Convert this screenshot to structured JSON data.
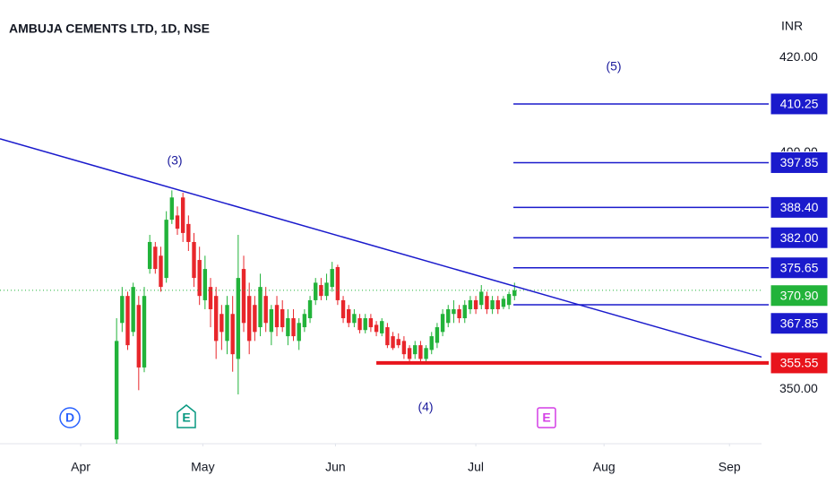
{
  "chart_data": {
    "type": "candlestick",
    "title": "AMBUJA CEMENTS LTD, 1D, NSE",
    "currency": "INR",
    "up_color": "#22b33a",
    "down_color": "#e8262b",
    "open": [
      339.4,
      364.0,
      369.7,
      362.1,
      367.8,
      354.6,
      375.4,
      380.1,
      378.2,
      373.5,
      385.8,
      386.7,
      390.5,
      384.9,
      381.1,
      377.3,
      368.8,
      371.6,
      369.7,
      365.9,
      360.2,
      365.9,
      356.4,
      375.4,
      369.7,
      367.8,
      363.1,
      369.7,
      362.1,
      367.8,
      366.9,
      361.2,
      365.0,
      360.2,
      363.1,
      365.0,
      368.8,
      372.0,
      369.7,
      371.6,
      375.8,
      368.8,
      366.9,
      364.0,
      365.0,
      362.5,
      365.0,
      363.6,
      361.8,
      363.1,
      361.2,
      360.6,
      360.2,
      358.7,
      357.4,
      359.3,
      356.4,
      358.3,
      359.8,
      362.1,
      364.0,
      365.9,
      366.9,
      365.0,
      366.9,
      368.8,
      367.8,
      369.7,
      366.9,
      368.8,
      367.4,
      367.8,
      369.7
    ],
    "high": [
      365.0,
      371.6,
      370.6,
      372.5,
      369.7,
      371.6,
      382.6,
      381.1,
      380.1,
      387.6,
      392.0,
      388.6,
      391.5,
      386.7,
      383.0,
      380.1,
      378.2,
      373.5,
      371.6,
      367.8,
      369.7,
      369.7,
      382.6,
      378.2,
      372.5,
      369.7,
      374.4,
      371.6,
      367.8,
      369.7,
      368.8,
      366.9,
      366.9,
      365.0,
      366.9,
      369.7,
      373.5,
      373.5,
      374.4,
      376.9,
      376.3,
      369.7,
      367.8,
      366.9,
      365.9,
      365.9,
      365.9,
      364.4,
      365.0,
      364.0,
      362.1,
      361.8,
      361.2,
      359.3,
      360.2,
      360.2,
      359.3,
      362.1,
      364.0,
      366.9,
      367.8,
      368.8,
      367.8,
      368.8,
      369.7,
      369.7,
      372.0,
      370.6,
      369.7,
      369.7,
      369.7,
      370.6,
      372.5
    ],
    "low": [
      338.5,
      362.1,
      358.3,
      361.2,
      349.8,
      353.6,
      374.4,
      374.4,
      370.6,
      372.5,
      384.9,
      382.6,
      381.1,
      379.2,
      371.6,
      367.8,
      366.9,
      363.1,
      356.4,
      358.3,
      357.4,
      353.7,
      348.9,
      362.1,
      357.4,
      360.2,
      361.2,
      362.1,
      359.3,
      361.2,
      362.1,
      359.3,
      360.2,
      358.3,
      362.1,
      364.0,
      367.8,
      368.8,
      368.8,
      370.6,
      367.8,
      364.0,
      363.1,
      363.1,
      361.8,
      361.8,
      362.1,
      361.2,
      361.2,
      358.7,
      358.3,
      358.7,
      356.4,
      355.5,
      356.4,
      355.5,
      355.5,
      357.4,
      358.7,
      361.2,
      363.1,
      364.0,
      364.0,
      364.0,
      365.9,
      365.9,
      366.9,
      365.9,
      365.9,
      365.9,
      366.9,
      366.9,
      368.8
    ],
    "close": [
      360.2,
      369.7,
      359.3,
      371.6,
      354.6,
      369.7,
      381.1,
      375.4,
      371.6,
      385.8,
      390.5,
      383.9,
      383.0,
      381.1,
      373.5,
      369.7,
      375.4,
      366.9,
      360.2,
      362.1,
      367.8,
      357.4,
      373.5,
      364.0,
      360.2,
      362.1,
      371.6,
      364.0,
      366.9,
      363.1,
      363.1,
      365.0,
      361.2,
      364.0,
      365.9,
      368.8,
      372.5,
      369.7,
      372.5,
      375.4,
      368.8,
      365.0,
      364.0,
      365.9,
      362.5,
      365.0,
      363.1,
      362.1,
      364.4,
      359.3,
      358.7,
      359.3,
      357.4,
      356.4,
      359.3,
      356.4,
      358.7,
      361.2,
      363.1,
      365.9,
      366.9,
      366.9,
      365.0,
      367.8,
      368.8,
      366.9,
      370.6,
      366.9,
      368.8,
      366.9,
      369.1,
      370.1,
      370.9
    ],
    "xlim": [
      -21.1,
      116.7
    ],
    "xticks": [
      {
        "value": -6.5,
        "label": "Apr"
      },
      {
        "value": 15.6,
        "label": "May"
      },
      {
        "value": 39.6,
        "label": "Jun"
      },
      {
        "value": 65,
        "label": "Jul"
      },
      {
        "value": 88.2,
        "label": "Aug"
      },
      {
        "value": 110.9,
        "label": "Sep"
      }
    ],
    "ylim": [
      338.5,
      432.2
    ],
    "yticks": [
      {
        "value": 420,
        "label": "420.00"
      },
      {
        "value": 400,
        "label": "400.00"
      },
      {
        "value": 350,
        "label": "350.00"
      }
    ],
    "last_price": {
      "value": 370.9,
      "label": "370.90",
      "color": "#22b33a"
    },
    "trendline": {
      "x": [
        -21.1,
        116.7
      ],
      "y": [
        402.9,
        356.8
      ],
      "color": "#1a1acc"
    },
    "levels": [
      {
        "value": 410.25,
        "label": "410.25",
        "color": "#1a1acc",
        "x_start": 71.8
      },
      {
        "value": 397.85,
        "label": "397.85",
        "color": "#1a1acc",
        "x_start": 71.8
      },
      {
        "value": 388.4,
        "label": "388.40",
        "color": "#1a1acc",
        "x_start": 71.8
      },
      {
        "value": 382,
        "label": "382.00",
        "color": "#1a1acc",
        "x_start": 71.8
      },
      {
        "value": 375.65,
        "label": "375.65",
        "color": "#1a1acc",
        "x_start": 71.8
      },
      {
        "value": 367.85,
        "label": "367.85",
        "color": "#1a1acc",
        "x_start": 71.8
      },
      {
        "value": 355.55,
        "label": "355.55",
        "color": "#e8141c",
        "x_start": 47
      }
    ],
    "annotations": [
      "(5)",
      "(3)",
      "(4)"
    ],
    "events": [
      "D",
      "E",
      "E"
    ]
  }
}
